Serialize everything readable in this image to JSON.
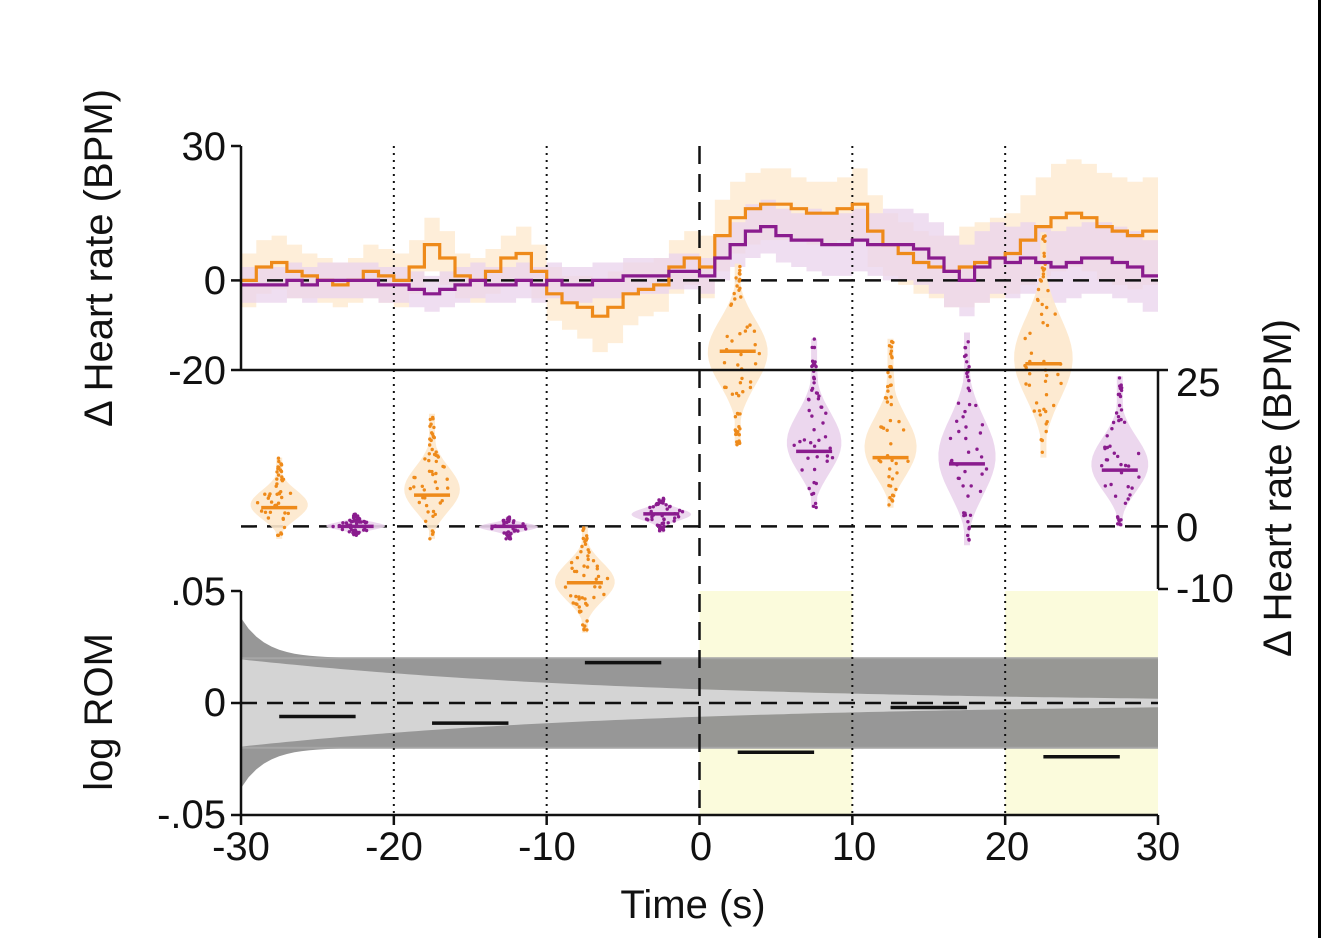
{
  "colors": {
    "orange": "#ee8a1a",
    "orange_light": "#fde8cc",
    "purple": "#8a1c8e",
    "purple_light": "#ead3ec",
    "yellow_shade": "#fbfbdc",
    "gray_dark": "#8c8c8c",
    "gray_light": "#e4e4e4",
    "ref_line": "#a6a6a6"
  },
  "chart_data": [
    {
      "type": "line",
      "panel": "top",
      "ylabel": "Δ Heart rate (BPM)",
      "xlim": [
        -30,
        30
      ],
      "ylim": [
        -20,
        30
      ],
      "ytick_labels": [
        "30",
        "0",
        "-20"
      ],
      "ytick_values": [
        30,
        0,
        -20
      ],
      "vertical_dotted_x": [
        -20,
        -10,
        10,
        20
      ],
      "vertical_dashed_x": [
        0
      ],
      "series": [
        {
          "name": "orange",
          "x": [
            -30,
            -29,
            -28,
            -27,
            -26,
            -25,
            -24,
            -23,
            -22,
            -21,
            -20,
            -19,
            -18,
            -17,
            -16,
            -15,
            -14,
            -13,
            -12,
            -11,
            -10,
            -9,
            -8,
            -7,
            -6,
            -5,
            -4,
            -3,
            -2,
            -1,
            0,
            1,
            2,
            3,
            4,
            5,
            6,
            7,
            8,
            9,
            10,
            11,
            12,
            13,
            14,
            15,
            16,
            17,
            18,
            19,
            20,
            21,
            22,
            23,
            24,
            25,
            26,
            27,
            28,
            29,
            30
          ],
          "values": [
            0,
            3,
            4,
            2,
            1,
            0,
            -1,
            0,
            2,
            1,
            0,
            3,
            8,
            5,
            1,
            0,
            2,
            5,
            6,
            2,
            -3,
            -5,
            -6,
            -8,
            -6,
            -3,
            -2,
            -1,
            3,
            5,
            3,
            10,
            14,
            16,
            17,
            17,
            16,
            15,
            15,
            16,
            17,
            11,
            8,
            6,
            4,
            3,
            2,
            3,
            4,
            5,
            6,
            9,
            12,
            14,
            15,
            14,
            12,
            11,
            10,
            11,
            12
          ],
          "band_halfwidth": [
            6,
            6,
            6,
            6,
            5,
            5,
            5,
            5,
            6,
            6,
            6,
            6,
            6,
            6,
            5,
            5,
            5,
            5,
            6,
            6,
            6,
            6,
            7,
            8,
            8,
            7,
            6,
            6,
            6,
            6,
            7,
            8,
            8,
            8,
            8,
            8,
            7,
            7,
            7,
            7,
            8,
            8,
            7,
            7,
            7,
            7,
            8,
            9,
            9,
            9,
            9,
            10,
            11,
            12,
            12,
            12,
            12,
            12,
            12,
            12,
            12
          ],
          "band_color": "orange_light"
        },
        {
          "name": "purple",
          "x": [
            -30,
            -29,
            -28,
            -27,
            -26,
            -25,
            -24,
            -23,
            -22,
            -21,
            -20,
            -19,
            -18,
            -17,
            -16,
            -15,
            -14,
            -13,
            -12,
            -11,
            -10,
            -9,
            -8,
            -7,
            -6,
            -5,
            -4,
            -3,
            -2,
            -1,
            0,
            1,
            2,
            3,
            4,
            5,
            6,
            7,
            8,
            9,
            10,
            11,
            12,
            13,
            14,
            15,
            16,
            17,
            18,
            19,
            20,
            21,
            22,
            23,
            24,
            25,
            26,
            27,
            28,
            29,
            30
          ],
          "values": [
            -1,
            -1,
            -1,
            0,
            -1,
            0,
            0,
            0,
            0,
            -1,
            -1,
            -2,
            -3,
            -2,
            -1,
            0,
            -1,
            -1,
            0,
            -1,
            0,
            -1,
            -1,
            0,
            0,
            1,
            1,
            1,
            2,
            2,
            1,
            5,
            8,
            11,
            12,
            10,
            9,
            9,
            8,
            8,
            9,
            8,
            8,
            8,
            7,
            5,
            2,
            0,
            3,
            5,
            4,
            5,
            4,
            3,
            4,
            5,
            5,
            4,
            3,
            1,
            0
          ],
          "band_halfwidth": [
            4,
            4,
            4,
            4,
            4,
            4,
            4,
            4,
            4,
            4,
            4,
            4,
            4,
            4,
            4,
            4,
            4,
            4,
            4,
            4,
            4,
            4,
            4,
            4,
            4,
            4,
            4,
            4,
            4,
            4,
            4,
            5,
            5,
            6,
            6,
            6,
            6,
            7,
            7,
            7,
            7,
            7,
            8,
            8,
            8,
            8,
            8,
            8,
            8,
            8,
            8,
            8,
            8,
            8,
            8,
            8,
            8,
            8,
            8,
            8,
            8
          ],
          "band_color": "purple_light"
        }
      ]
    },
    {
      "type": "scatter",
      "panel": "middle",
      "subtype": "violin",
      "ylabel": "Δ Heart rate (BPM)",
      "ylabel_side": "right",
      "ylim": [
        -10,
        25
      ],
      "ytick_labels": [
        "25",
        "0",
        "-10"
      ],
      "ytick_values": [
        25,
        0,
        -10
      ],
      "reference_line": 0,
      "violins": [
        {
          "center": -27.5,
          "group": "orange",
          "median": 3,
          "min": -2,
          "max": 11,
          "n": 48
        },
        {
          "center": -22.5,
          "group": "purple",
          "median": 0,
          "min": -1.5,
          "max": 2,
          "n": 55
        },
        {
          "center": -17.5,
          "group": "orange",
          "median": 5,
          "min": -2,
          "max": 18,
          "n": 55
        },
        {
          "center": -12.5,
          "group": "purple",
          "median": 0,
          "min": -2,
          "max": 1.5,
          "n": 40
        },
        {
          "center": -7.5,
          "group": "orange",
          "median": -9,
          "min": -17,
          "max": 0,
          "n": 55
        },
        {
          "center": -2.5,
          "group": "purple",
          "median": 2,
          "min": -1,
          "max": 4.5,
          "n": 50
        },
        {
          "center": 2.5,
          "group": "orange",
          "median": 28,
          "min": 13,
          "max": 42,
          "n": 60
        },
        {
          "center": 7.5,
          "group": "purple",
          "median": 12,
          "min": 3,
          "max": 30,
          "n": 55
        },
        {
          "center": 12.5,
          "group": "orange",
          "median": 11,
          "min": 3,
          "max": 30,
          "n": 50
        },
        {
          "center": 17.5,
          "group": "purple",
          "median": 10,
          "min": -3,
          "max": 31,
          "n": 55
        },
        {
          "center": 22.5,
          "group": "orange",
          "median": 26,
          "min": 11,
          "max": 47,
          "n": 55
        },
        {
          "center": 27.5,
          "group": "purple",
          "median": 9,
          "min": 0,
          "max": 24,
          "n": 50
        }
      ]
    },
    {
      "type": "area",
      "panel": "bottom",
      "ylabel": "log ROM",
      "xlabel": "Time (s)",
      "xlim": [
        -30,
        30
      ],
      "ylim": [
        -0.05,
        0.05
      ],
      "ytick_labels": [
        ".05",
        "0",
        "-.05"
      ],
      "ytick_values": [
        0.05,
        0,
        -0.05
      ],
      "xtick_labels": [
        "-30",
        "-20",
        "-10",
        "0",
        "10",
        "20",
        "30"
      ],
      "xtick_values": [
        -30,
        -20,
        -10,
        0,
        10,
        20,
        30
      ],
      "threshold_lines": [
        0.02,
        -0.02
      ],
      "shaded_x_ranges": [
        [
          0,
          10
        ],
        [
          20,
          30
        ]
      ],
      "segments": [
        {
          "x_start": -27.5,
          "x_end": -22.5,
          "value": -0.006
        },
        {
          "x_start": -17.5,
          "x_end": -12.5,
          "value": -0.009
        },
        {
          "x_start": -7.5,
          "x_end": -2.5,
          "value": 0.018
        },
        {
          "x_start": 2.5,
          "x_end": 7.5,
          "value": -0.022
        },
        {
          "x_start": 12.5,
          "x_end": 17.5,
          "value": -0.002
        },
        {
          "x_start": 22.5,
          "x_end": 27.5,
          "value": -0.024
        }
      ]
    }
  ]
}
